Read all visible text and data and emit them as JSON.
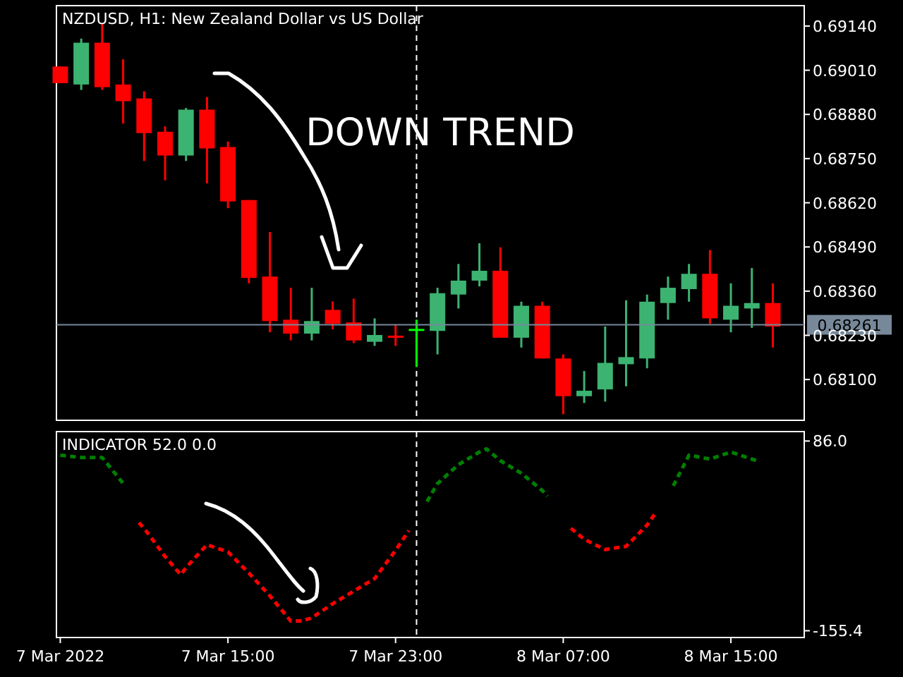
{
  "chart_data": [
    {
      "type": "candlestick",
      "title": "NZDUSD, H1:  New Zealand Dollar vs US Dollar",
      "annotations": [
        "DOWN TREND"
      ],
      "x": [
        "2022-03-07T07:00",
        "2022-03-07T08:00",
        "2022-03-07T09:00",
        "2022-03-07T10:00",
        "2022-03-07T11:00",
        "2022-03-07T12:00",
        "2022-03-07T13:00",
        "2022-03-07T14:00",
        "2022-03-07T15:00",
        "2022-03-07T16:00",
        "2022-03-07T17:00",
        "2022-03-07T18:00",
        "2022-03-07T19:00",
        "2022-03-07T20:00",
        "2022-03-07T21:00",
        "2022-03-07T22:00",
        "2022-03-07T23:00",
        "2022-03-08T00:00",
        "2022-03-08T01:00",
        "2022-03-08T02:00",
        "2022-03-08T03:00",
        "2022-03-08T04:00",
        "2022-03-08T05:00",
        "2022-03-08T06:00",
        "2022-03-08T07:00",
        "2022-03-08T08:00",
        "2022-03-08T09:00",
        "2022-03-08T10:00",
        "2022-03-08T11:00",
        "2022-03-08T12:00",
        "2022-03-08T13:00",
        "2022-03-08T14:00",
        "2022-03-08T15:00",
        "2022-03-08T16:00",
        "2022-03-08T17:00"
      ],
      "ohlc": [
        [
          0.69021,
          0.69021,
          0.68972,
          0.68972
        ],
        [
          0.68968,
          0.69103,
          0.68952,
          0.69091
        ],
        [
          0.69091,
          0.69148,
          0.68952,
          0.6896
        ],
        [
          0.68968,
          0.69042,
          0.68853,
          0.68919
        ],
        [
          0.68927,
          0.68948,
          0.68743,
          0.68825
        ],
        [
          0.68829,
          0.68845,
          0.68686,
          0.68759
        ],
        [
          0.68759,
          0.68899,
          0.68743,
          0.68894
        ],
        [
          0.68894,
          0.68931,
          0.68677,
          0.6878
        ],
        [
          0.68784,
          0.688,
          0.68604,
          0.68624
        ],
        [
          0.68628,
          0.68628,
          0.68383,
          0.68399
        ],
        [
          0.68403,
          0.68534,
          0.68239,
          0.68272
        ],
        [
          0.68276,
          0.6837,
          0.68215,
          0.68235
        ],
        [
          0.68235,
          0.6837,
          0.68215,
          0.68272
        ],
        [
          0.68305,
          0.6833,
          0.68248,
          0.68264
        ],
        [
          0.68268,
          0.68338,
          0.68207,
          0.68215
        ],
        [
          0.68211,
          0.6828,
          0.68199,
          0.68231
        ],
        [
          0.68229,
          0.6826,
          0.68199,
          0.68227
        ],
        [
          0.68247,
          0.68276,
          0.68137,
          0.68249
        ],
        [
          0.68243,
          0.6837,
          0.68174,
          0.68354
        ],
        [
          0.6835,
          0.6844,
          0.68309,
          0.68391
        ],
        [
          0.68391,
          0.68501,
          0.68374,
          0.6842
        ],
        [
          0.6842,
          0.68489,
          0.68223,
          0.68223
        ],
        [
          0.68223,
          0.68329,
          0.68194,
          0.68317
        ],
        [
          0.68317,
          0.68329,
          0.68162,
          0.68162
        ],
        [
          0.68162,
          0.68174,
          0.67998,
          0.68051
        ],
        [
          0.68051,
          0.68125,
          0.68031,
          0.68067
        ],
        [
          0.68071,
          0.68256,
          0.68035,
          0.68149
        ],
        [
          0.68145,
          0.68333,
          0.6808,
          0.68166
        ],
        [
          0.68162,
          0.6835,
          0.68133,
          0.68329
        ],
        [
          0.68325,
          0.68403,
          0.68276,
          0.6837
        ],
        [
          0.68366,
          0.6844,
          0.68329,
          0.68411
        ],
        [
          0.68411,
          0.68481,
          0.68264,
          0.6828
        ],
        [
          0.68276,
          0.68383,
          0.68239,
          0.68317
        ],
        [
          0.68309,
          0.68428,
          0.68252,
          0.68325
        ],
        [
          0.68325,
          0.68383,
          0.68194,
          0.68256
        ]
      ],
      "colors": [
        "#ff0000",
        "#3cb371",
        "#ff0000",
        "#ff0000",
        "#ff0000",
        "#ff0000",
        "#3cb371",
        "#ff0000",
        "#ff0000",
        "#ff0000",
        "#ff0000",
        "#ff0000",
        "#3cb371",
        "#ff0000",
        "#ff0000",
        "#3cb371",
        "#ff0000",
        "#00ff00",
        "#3cb371",
        "#3cb371",
        "#3cb371",
        "#ff0000",
        "#3cb371",
        "#ff0000",
        "#ff0000",
        "#3cb371",
        "#3cb371",
        "#3cb371",
        "#3cb371",
        "#3cb371",
        "#3cb371",
        "#ff0000",
        "#3cb371",
        "#3cb371",
        "#ff0000"
      ],
      "xlim": [
        "2022-03-07T06:49",
        "2022-03-08T18:30"
      ],
      "ylim": [
        0.6798,
        0.692
      ],
      "yticks": [
        {
          "value": 0.6914,
          "label": "0.69140"
        },
        {
          "value": 0.6901,
          "label": "0.69010"
        },
        {
          "value": 0.6888,
          "label": "0.68880"
        },
        {
          "value": 0.6875,
          "label": "0.68750"
        },
        {
          "value": 0.6862,
          "label": "0.68620"
        },
        {
          "value": 0.6849,
          "label": "0.68490"
        },
        {
          "value": 0.6836,
          "label": "0.68360"
        },
        {
          "value": 0.6823,
          "label": "0.68230"
        },
        {
          "value": 0.681,
          "label": "0.68100"
        }
      ],
      "tick_labels": "y",
      "ref_lines": [
        {
          "axis": "y",
          "value": 0.68261,
          "label": "0.68261",
          "color": "#778899",
          "line_style": "solid"
        },
        {
          "axis": "x",
          "value": "2022-03-08T00:00",
          "color": "#ffffff",
          "line_style": "dashed"
        }
      ]
    },
    {
      "type": "line",
      "title": "INDICATOR 52.0 0.0",
      "line_style": "dashed",
      "series": [
        {
          "color": "#008000",
          "x": [
            "2022-03-07T07:00",
            "2022-03-07T08:00",
            "2022-03-07T09:00",
            "2022-03-07T10:00",
            "2022-03-07T23:59",
            "2022-03-08T00:30",
            "2022-03-08T01:00",
            "2022-03-08T02:00",
            "2022-03-08T03:00",
            "2022-03-08T03:20",
            "2022-03-08T04:00",
            "2022-03-08T05:00",
            "2022-03-08T06:00",
            "2022-03-08T06:15",
            "2022-03-08T12:00",
            "2022-03-08T12:15",
            "2022-03-08T13:00",
            "2022-03-08T14:00",
            "2022-03-08T15:00",
            "2022-03-08T16:00",
            "2022-03-08T16:15"
          ],
          "values": [
            68,
            65,
            65,
            32,
            null,
            9,
            32,
            56,
            72,
            76,
            61,
            45,
            23,
            16,
            null,
            29,
            68,
            63,
            72,
            63,
            61
          ]
        },
        {
          "color": "#ff0000",
          "x": [
            "2022-03-07T10:45",
            "2022-03-07T11:00",
            "2022-03-07T12:00",
            "2022-03-07T12:45",
            "2022-03-07T13:00",
            "2022-03-07T14:00",
            "2022-03-07T15:00",
            "2022-03-07T16:00",
            "2022-03-07T17:00",
            "2022-03-07T18:00",
            "2022-03-07T18:30",
            "2022-03-07T19:00",
            "2022-03-07T20:00",
            "2022-03-07T21:00",
            "2022-03-07T22:00",
            "2022-03-07T23:00",
            "2022-03-07T23:38",
            "2022-03-08T07:00",
            "2022-03-08T07:22",
            "2022-03-08T08:00",
            "2022-03-08T09:00",
            "2022-03-08T10:00",
            "2022-03-08T11:00",
            "2022-03-08T11:22"
          ],
          "values": [
            -18,
            -25,
            -61,
            -84,
            -75,
            -46,
            -55,
            -82,
            -111,
            -143,
            -143,
            -139,
            -121,
            -105,
            -89,
            -53,
            -28,
            null,
            -25,
            -39,
            -52,
            -48,
            -21,
            -7
          ]
        }
      ],
      "xlim": [
        "2022-03-07T06:49",
        "2022-03-08T18:30"
      ],
      "ylim": [
        -164,
        98
      ],
      "xticks": [
        {
          "value": "2022-03-07T07:00",
          "label": "7 Mar 2022"
        },
        {
          "value": "2022-03-07T15:00",
          "label": "7 Mar 15:00"
        },
        {
          "value": "2022-03-07T23:00",
          "label": "7 Mar 23:00"
        },
        {
          "value": "2022-03-08T07:00",
          "label": "8 Mar 07:00"
        },
        {
          "value": "2022-03-08T15:00",
          "label": "8 Mar 15:00"
        }
      ],
      "yticks": [
        {
          "value": 86,
          "label": "86.0"
        },
        {
          "value": -155.4,
          "label": "-155.4"
        }
      ],
      "ref_lines": [
        {
          "axis": "x",
          "value": "2022-03-08T00:00",
          "color": "#ffffff",
          "line_style": "dashed"
        }
      ]
    }
  ]
}
